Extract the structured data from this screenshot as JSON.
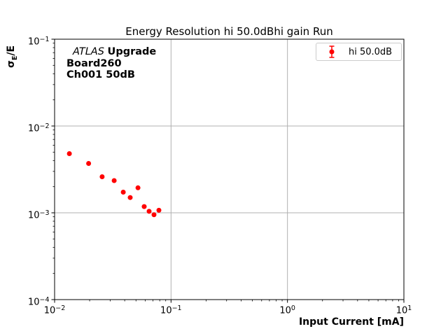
{
  "figure": {
    "background": "#ffffff"
  },
  "chart_data": {
    "type": "scatter",
    "title": "Energy Resolution hi 50.0dBhi gain Run",
    "xlabel": "Input Current [mA]",
    "ylabel": "σE/E",
    "ylabel_parts": {
      "symbol": "σ",
      "subscript": "E",
      "rest": "/E"
    },
    "xscale": "log",
    "yscale": "log",
    "xlim": [
      0.01,
      10
    ],
    "ylim": [
      0.0001,
      0.1
    ],
    "xtick_exponents": [
      -2,
      -1,
      0,
      1
    ],
    "ytick_exponents": [
      -1,
      -2,
      -3,
      -4
    ],
    "grid": {
      "show": true,
      "color": "#b0b0b0"
    },
    "axes_color": "#000000",
    "legend": {
      "location": "upper right",
      "label": "hi 50.0dB",
      "border_color": "#cccccc"
    },
    "annotation": {
      "experiment": "ATLAS",
      "tag": "Upgrade",
      "line2": "Board260",
      "line3": "Ch001 50dB"
    },
    "series": [
      {
        "name": "hi 50.0dB",
        "color": "#ff0000",
        "marker": "circle-errorbar",
        "x": [
          0.0134,
          0.0196,
          0.0256,
          0.0325,
          0.0389,
          0.0446,
          0.052,
          0.0588,
          0.0648,
          0.0714,
          0.0787
        ],
        "y": [
          0.0048,
          0.0037,
          0.0026,
          0.00235,
          0.00173,
          0.0015,
          0.00194,
          0.00118,
          0.00104,
          0.00095,
          0.00107
        ]
      }
    ]
  }
}
